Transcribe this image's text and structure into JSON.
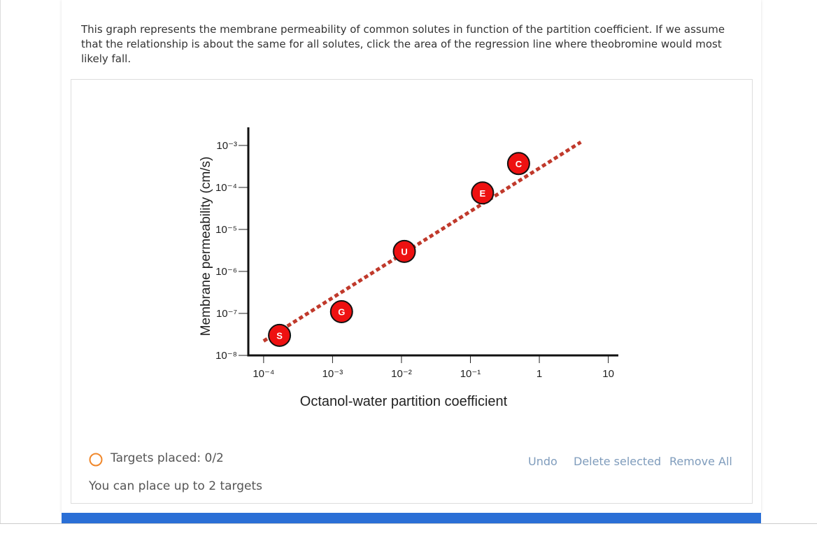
{
  "question": "This graph represents the membrane permeability of common solutes in function of the partition coefficient. If we assume that the relationship is about the same for all solutes, click the area of the regression line where theobromine would most likely fall.",
  "chart_data": {
    "type": "scatter",
    "x_label": "Octanol-water partition coefficient",
    "y_label": "Membrane permeability (cm/s)",
    "log_x": true,
    "log_y": true,
    "xlim": [
      6e-05,
      14
    ],
    "ylim": [
      1e-08,
      0.0027
    ],
    "xticks": [
      {
        "value": 0.0001,
        "label": "10⁻⁴"
      },
      {
        "value": 0.001,
        "label": "10⁻³"
      },
      {
        "value": 0.01,
        "label": "10⁻²"
      },
      {
        "value": 0.1,
        "label": "10⁻¹"
      },
      1,
      10
    ],
    "yticks": [
      {
        "value": 1e-08,
        "label": "10⁻⁸"
      },
      {
        "value": 1e-07,
        "label": "10⁻⁷"
      },
      {
        "value": 1e-06,
        "label": "10⁻⁶"
      },
      {
        "value": 1e-05,
        "label": "10⁻⁵"
      },
      {
        "value": 0.0001,
        "label": "10⁻⁴"
      },
      {
        "value": 0.001,
        "label": "10⁻³"
      }
    ],
    "points": {
      "labels": [
        "S",
        "G",
        "U",
        "E",
        "C"
      ],
      "x": [
        0.00017,
        0.00135,
        0.011,
        0.15,
        0.5
      ],
      "values": [
        3e-08,
        1.1e-07,
        3e-06,
        7.4e-05,
        0.00037
      ],
      "color": "#ee1111"
    },
    "regression_line": {
      "x": [
        0.0001,
        4
      ],
      "values": [
        2.2e-08,
        0.0012
      ],
      "color": "#c0392b"
    }
  },
  "status": {
    "targets_placed": "Targets placed: 0/2",
    "limit": "You can place up to 2 targets"
  },
  "buttons": [
    "Undo",
    "Delete selected",
    "Remove All"
  ]
}
